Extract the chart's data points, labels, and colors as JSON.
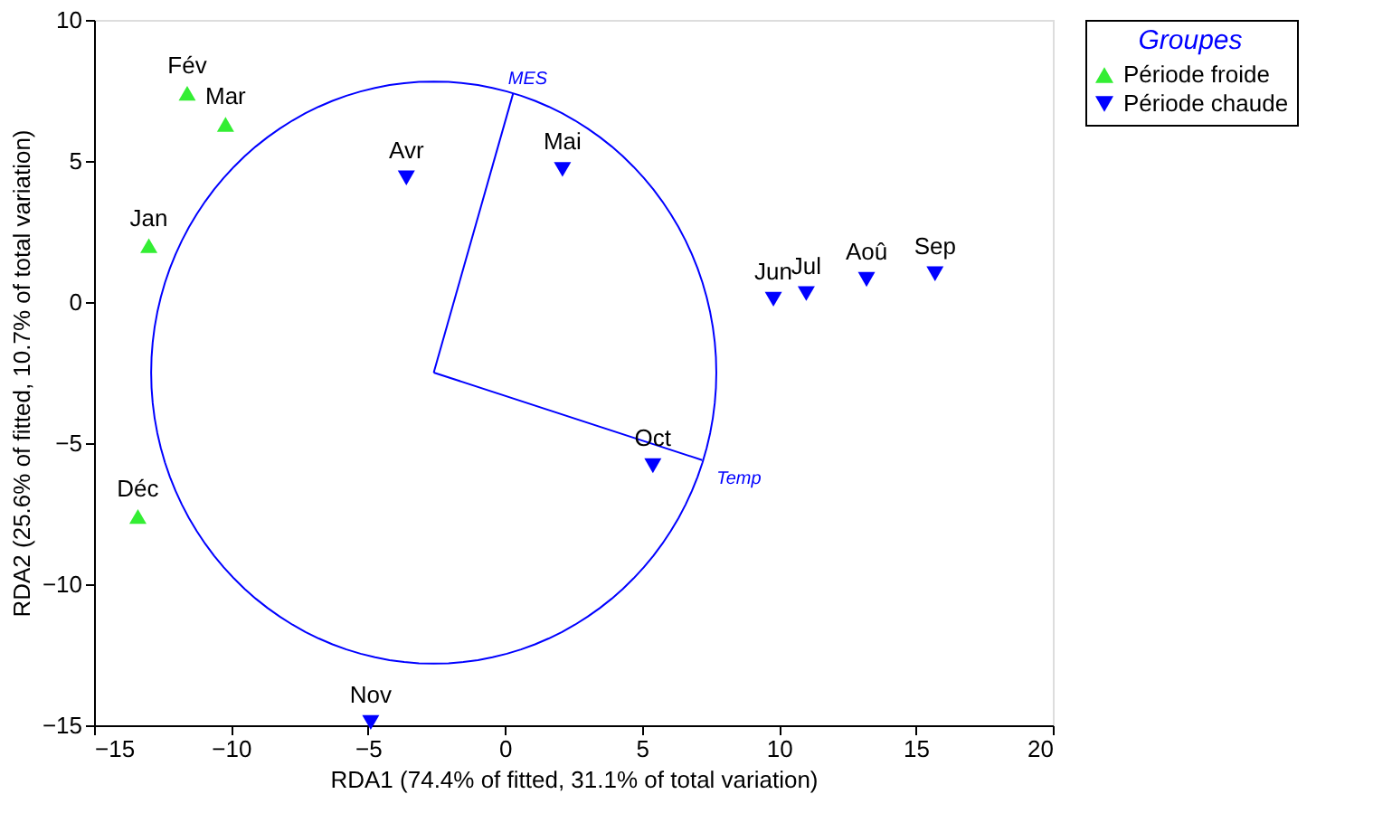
{
  "chart_data": {
    "type": "scatter",
    "xlabel": "RDA1 (74.4% of fitted, 31.1% of total variation)",
    "ylabel": "RDA2 (25.6% of fitted, 10.7% of total variation)",
    "legend_title": "Groupes",
    "legend": "top right",
    "grid": false,
    "xlim": [
      -15,
      20
    ],
    "xticks": [
      -15,
      -10,
      -5,
      0,
      5,
      10,
      15,
      20
    ],
    "ylim": [
      -15,
      10
    ],
    "yticks": [
      -15,
      -10,
      -5,
      0,
      5,
      10
    ],
    "series": [
      {
        "name": "Période froide",
        "color": "#33ee33",
        "marker": "triangle",
        "x": [
          -11.6,
          -10.2,
          -13.0,
          -13.4
        ],
        "values": [
          7.4,
          6.3,
          2.0,
          -7.6
        ]
      },
      {
        "name": "Période chaude",
        "color": "#0000ff",
        "marker": "triangle-down",
        "x": [
          -3.6,
          2.1,
          9.8,
          11.0,
          13.2,
          15.7,
          5.4,
          -4.9
        ],
        "values": [
          4.4,
          4.7,
          0.1,
          0.3,
          0.8,
          1.0,
          -5.8,
          -14.9
        ]
      },
      {
        "type": "line",
        "name": "MES",
        "color": "#0000ff",
        "x": [
          -2.6,
          0.3
        ],
        "values": [
          -2.5,
          7.4
        ]
      },
      {
        "type": "line",
        "name": "Temp",
        "color": "#0000ff",
        "x": [
          -2.6,
          7.2
        ],
        "values": [
          -2.5,
          -5.6
        ]
      }
    ],
    "annotations": [
      {
        "text": "Fév",
        "x": -11.6,
        "y": 7.4
      },
      {
        "text": "Mar",
        "x": -10.2,
        "y": 6.3
      },
      {
        "text": "Jan",
        "x": -13.0,
        "y": 2.0
      },
      {
        "text": "Déc",
        "x": -13.4,
        "y": -7.6
      },
      {
        "text": "Avr",
        "x": -3.6,
        "y": 4.4
      },
      {
        "text": "Mai",
        "x": 2.1,
        "y": 4.7
      },
      {
        "text": "Jun",
        "x": 9.8,
        "y": 0.1
      },
      {
        "text": "Jul",
        "x": 11.0,
        "y": 0.3
      },
      {
        "text": "Aoû",
        "x": 13.2,
        "y": 0.8
      },
      {
        "text": "Sep",
        "x": 15.7,
        "y": 1.0
      },
      {
        "text": "Oct",
        "x": 5.4,
        "y": -5.8
      },
      {
        "text": "Nov",
        "x": -4.9,
        "y": -14.9
      }
    ]
  }
}
